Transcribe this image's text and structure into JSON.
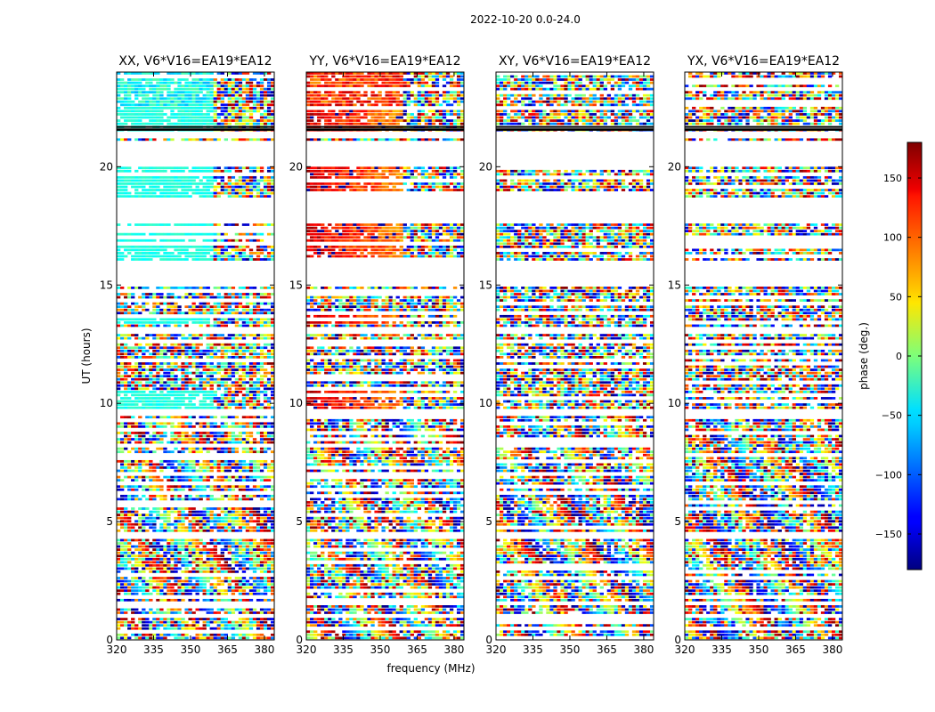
{
  "figure": {
    "suptitle": "2022-10-20 0.0-24.0"
  },
  "chart_data": {
    "type": "heatmap",
    "x_label": "frequency (MHz)",
    "y_label": "UT (hours)",
    "xlim": [
      320,
      384
    ],
    "ylim": [
      0,
      24
    ],
    "x_ticks": [
      320,
      335,
      350,
      365,
      380
    ],
    "y_ticks": [
      0,
      5,
      10,
      15,
      20
    ],
    "colormap": "jet",
    "colorbar": {
      "label": "phase (deg.)",
      "range": [
        -180,
        180
      ],
      "ticks": [
        150,
        100,
        50,
        0,
        -50,
        -100,
        -150
      ],
      "tick_labels": [
        "150",
        "100",
        "50",
        "0",
        "−50",
        "−100",
        "−150"
      ]
    },
    "data_gaps_hours": [
      [
        21.2,
        21.5
      ],
      [
        20.0,
        21.1
      ],
      [
        17.6,
        18.7
      ],
      [
        15.0,
        16.0
      ],
      [
        13.0,
        13.15
      ],
      [
        12.55,
        12.7
      ],
      [
        9.5,
        9.75
      ],
      [
        4.3,
        4.5
      ],
      [
        1.4,
        1.6
      ],
      [
        0.95,
        1.05
      ]
    ],
    "panels": [
      {
        "title": "XX, V6*V16=EA19*EA12",
        "pattern": "cal_xx"
      },
      {
        "title": "YY, V6*V16=EA19*EA12",
        "pattern": "cal_yy"
      },
      {
        "title": "XY, V6*V16=EA19*EA12",
        "pattern": "noise"
      },
      {
        "title": "YX, V6*V16=EA19*EA12",
        "pattern": "noise"
      }
    ]
  }
}
